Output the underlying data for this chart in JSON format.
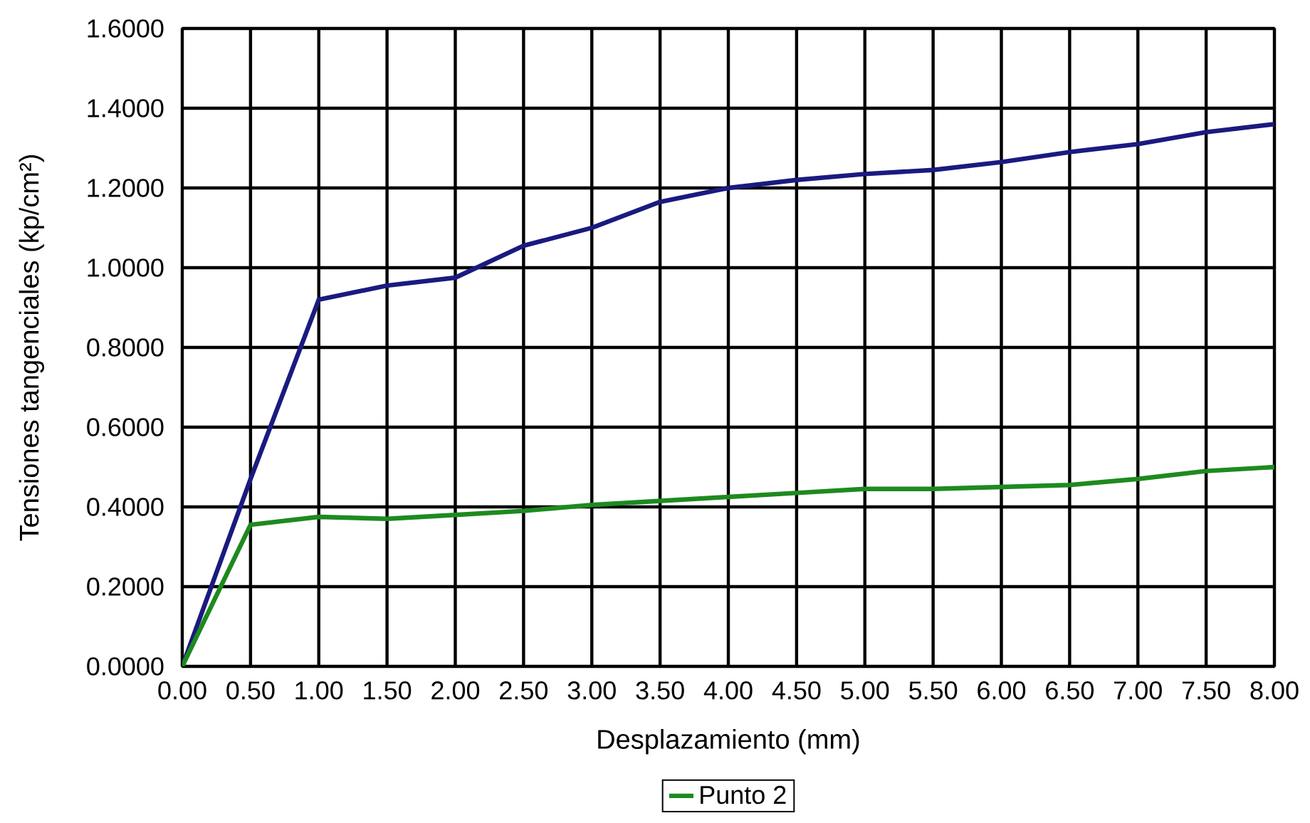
{
  "chart_data": {
    "type": "line",
    "xlabel": "Desplazamiento (mm)",
    "ylabel": "Tensiones tangenciales (kp/cm²)",
    "x": [
      0,
      0.5,
      1,
      1.5,
      2,
      2.5,
      3,
      3.5,
      4,
      4.5,
      5,
      5.5,
      6,
      6.5,
      7,
      7.5,
      8
    ],
    "series": [
      {
        "color": "#1a1a80",
        "values": [
          0,
          0.47,
          0.92,
          0.955,
          0.975,
          1.055,
          1.1,
          1.165,
          1.2,
          1.22,
          1.235,
          1.245,
          1.265,
          1.29,
          1.31,
          1.34,
          1.36
        ]
      },
      {
        "name": "Punto 2",
        "color": "#1e8a1e",
        "values": [
          0,
          0.355,
          0.375,
          0.37,
          0.38,
          0.39,
          0.405,
          0.415,
          0.425,
          0.435,
          0.445,
          0.445,
          0.45,
          0.455,
          0.47,
          0.49,
          0.5
        ]
      }
    ],
    "xlim": [
      0,
      8
    ],
    "ylim": [
      0,
      1.6
    ],
    "xticks": [
      {
        "value": 0,
        "label": "0.00"
      },
      {
        "value": 0.5,
        "label": "0.50"
      },
      {
        "value": 1,
        "label": "1.00"
      },
      {
        "value": 1.5,
        "label": "1.50"
      },
      {
        "value": 2,
        "label": "2.00"
      },
      {
        "value": 2.5,
        "label": "2.50"
      },
      {
        "value": 3,
        "label": "3.00"
      },
      {
        "value": 3.5,
        "label": "3.50"
      },
      {
        "value": 4,
        "label": "4.00"
      },
      {
        "value": 4.5,
        "label": "4.50"
      },
      {
        "value": 5,
        "label": "5.00"
      },
      {
        "value": 5.5,
        "label": "5.50"
      },
      {
        "value": 6,
        "label": "6.00"
      },
      {
        "value": 6.5,
        "label": "6.50"
      },
      {
        "value": 7,
        "label": "7.00"
      },
      {
        "value": 7.5,
        "label": "7.50"
      },
      {
        "value": 8,
        "label": "8.00"
      }
    ],
    "yticks": [
      {
        "value": 0,
        "label": "0.0000"
      },
      {
        "value": 0.2,
        "label": "0.2000"
      },
      {
        "value": 0.4,
        "label": "0.4000"
      },
      {
        "value": 0.6,
        "label": "0.6000"
      },
      {
        "value": 0.8,
        "label": "0.8000"
      },
      {
        "value": 1,
        "label": "1.0000"
      },
      {
        "value": 1.2,
        "label": "1.2000"
      },
      {
        "value": 1.4,
        "label": "1.4000"
      },
      {
        "value": 1.6,
        "label": "1.6000"
      }
    ],
    "grid": true,
    "legend": "bottom",
    "marker": "none",
    "line_style": "solid"
  }
}
